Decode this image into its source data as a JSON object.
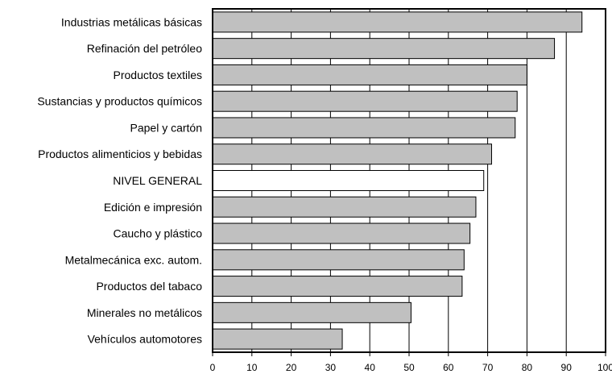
{
  "chart_data": {
    "type": "bar",
    "orientation": "horizontal",
    "categories": [
      "Industrias metálicas básicas",
      "Refinación del petróleo",
      "Productos textiles",
      "Sustancias y productos químicos",
      "Papel y cartón",
      "Productos alimenticios y bebidas",
      "NIVEL GENERAL",
      "Edición e impresión",
      "Caucho y plástico",
      "Metalmecánica exc. autom.",
      "Productos del tabaco",
      "Minerales no metálicos",
      "Vehículos automotores"
    ],
    "values": [
      94,
      87,
      80,
      77.5,
      77,
      71,
      69,
      67,
      65.5,
      64,
      63.5,
      50.5,
      33
    ],
    "highlight_index": 6,
    "xlim": [
      0,
      100
    ],
    "x_ticks": [
      "0",
      "10",
      "20",
      "30",
      "40",
      "50",
      "60",
      "70",
      "80",
      "90",
      "100"
    ],
    "grid": "vertical",
    "legend": "none",
    "title": "",
    "xlabel": "",
    "ylabel": "",
    "colors": {
      "bar": "#c0c0c0",
      "highlight_bar": "#ffffff",
      "bar_stroke": "#000000",
      "grid": "#000000",
      "frame": "#000000"
    }
  }
}
